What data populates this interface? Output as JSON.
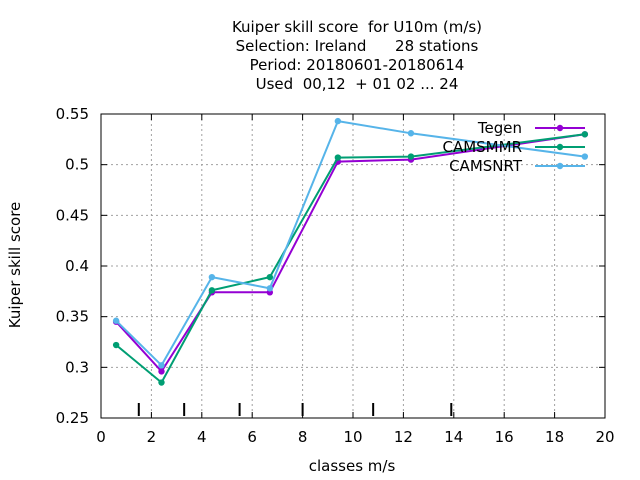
{
  "title_lines": [
    "Kuiper skill score  for U10m (m/s)",
    "Selection: Ireland      28 stations",
    "Period: 20180601-20180614",
    "Used  00,12  + 01 02 ... 24"
  ],
  "chart_data": {
    "type": "line",
    "xlabel": "classes m/s",
    "ylabel": "Kuiper skill score",
    "xlim": [
      0,
      20
    ],
    "ylim": [
      0.25,
      0.55
    ],
    "x_ticks": [
      0,
      2,
      4,
      6,
      8,
      10,
      12,
      14,
      16,
      18,
      20
    ],
    "y_ticks": [
      0.25,
      0.3,
      0.35,
      0.4,
      0.45,
      0.5,
      0.55
    ],
    "x_tick_labels": [
      "0",
      "2",
      "4",
      "6",
      "8",
      "10",
      "12",
      "14",
      "16",
      "18",
      "20"
    ],
    "y_tick_labels": [
      "0.25",
      "0.3",
      "0.35",
      "0.4",
      "0.45",
      "0.5",
      "0.55"
    ],
    "grid": true,
    "legend_position": "top-right",
    "class_boundaries": [
      1.5,
      3.3,
      5.5,
      8.0,
      10.8,
      13.9
    ],
    "series": [
      {
        "name": "Tegen",
        "color": "#9400d3",
        "x": [
          0.6,
          2.4,
          4.4,
          6.7,
          9.4,
          12.3,
          19.2
        ],
        "y": [
          0.345,
          0.296,
          0.374,
          0.374,
          0.503,
          0.505,
          0.53
        ]
      },
      {
        "name": "CAMSMMR",
        "color": "#009e73",
        "x": [
          0.6,
          2.4,
          4.4,
          6.7,
          9.4,
          12.3,
          19.2
        ],
        "y": [
          0.322,
          0.285,
          0.376,
          0.389,
          0.507,
          0.508,
          0.53
        ]
      },
      {
        "name": "CAMSNRT",
        "color": "#56b4e9",
        "x": [
          0.6,
          2.4,
          4.4,
          6.7,
          9.4,
          12.3,
          19.2
        ],
        "y": [
          0.346,
          0.302,
          0.389,
          0.378,
          0.543,
          0.531,
          0.508
        ]
      }
    ]
  }
}
